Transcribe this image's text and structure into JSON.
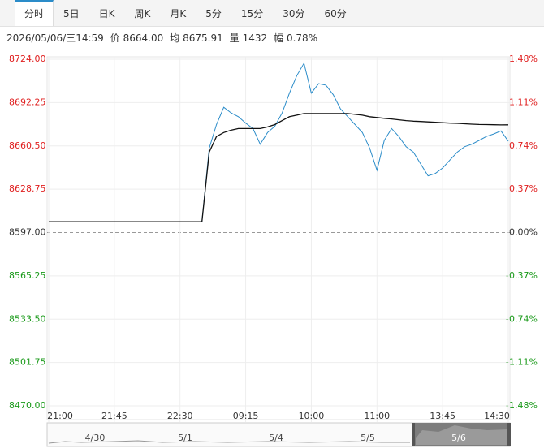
{
  "tabs": [
    "分时",
    "5日",
    "日K",
    "周K",
    "月K",
    "5分",
    "15分",
    "30分",
    "60分"
  ],
  "info": {
    "datetime": "2026/05/06/三14:59",
    "price_label": "价",
    "price": "8664.00",
    "avg_label": "均",
    "avg": "8675.91",
    "vol_label": "量",
    "vol": "1432",
    "range_label": "幅",
    "range": "0.78%"
  },
  "navigator": {
    "dates": [
      "4/30",
      "5/1",
      "5/4",
      "5/5",
      "5/6"
    ]
  },
  "chart_data": {
    "type": "line",
    "x": [
      0,
      1,
      2,
      3,
      4,
      5,
      6,
      7,
      8,
      9,
      10,
      11,
      12,
      13,
      14,
      15,
      16,
      17,
      18,
      19,
      20,
      21,
      22,
      23,
      24,
      25,
      26,
      27,
      28,
      29,
      30,
      31,
      32,
      33,
      34,
      35,
      36,
      37,
      38,
      39,
      40,
      41,
      42,
      43,
      44,
      45,
      46,
      47,
      48,
      49,
      50,
      51,
      52,
      53,
      54,
      55,
      56,
      57,
      58,
      59,
      60,
      61,
      62,
      63
    ],
    "xlim": [
      0,
      63
    ],
    "xticks": [
      {
        "value": 0,
        "label": "21:00"
      },
      {
        "value": 9,
        "label": "21:45"
      },
      {
        "value": 18,
        "label": "22:30"
      },
      {
        "value": 27,
        "label": "09:15"
      },
      {
        "value": 36,
        "label": "10:00"
      },
      {
        "value": 45,
        "label": "11:00"
      },
      {
        "value": 54,
        "label": "13:45"
      },
      {
        "value": 63,
        "label": "14:30"
      }
    ],
    "series": [
      {
        "name": "价",
        "color": "#2b8cc9",
        "values": [
          8605,
          8605,
          8605,
          8605,
          8605,
          8605,
          8605,
          8605,
          8605,
          8605,
          8605,
          8605,
          8605,
          8605,
          8605,
          8605,
          8605,
          8605,
          8605,
          8605,
          8605,
          8605,
          8658.8,
          8676.1,
          8688.8,
          8684.7,
          8681.9,
          8677.2,
          8673.2,
          8661.7,
          8670.3,
          8674.9,
          8684.7,
          8699.2,
          8711.9,
          8721.1,
          8699.2,
          8706.1,
          8705,
          8698,
          8687.6,
          8681.9,
          8676.1,
          8670.3,
          8658.8,
          8642.6,
          8664.5,
          8673.2,
          8667.4,
          8659.9,
          8655.9,
          8647.2,
          8638.6,
          8640.3,
          8644.3,
          8650.1,
          8655.9,
          8659.9,
          8661.7,
          8664.5,
          8667.4,
          8669.2,
          8671.5,
          8664
        ]
      },
      {
        "name": "均",
        "color": "#111111",
        "values": [
          8605,
          8605,
          8605,
          8605,
          8605,
          8605,
          8605,
          8605,
          8605,
          8605,
          8605,
          8605,
          8605,
          8605,
          8605,
          8605,
          8605,
          8605,
          8605,
          8605,
          8605,
          8605,
          8656,
          8667.4,
          8670.3,
          8672,
          8673.2,
          8673.2,
          8673.2,
          8673.2,
          8674.4,
          8676.1,
          8679,
          8681.9,
          8683,
          8684.2,
          8684.2,
          8684.2,
          8684.2,
          8684.2,
          8684.2,
          8684.2,
          8683.6,
          8683,
          8681.9,
          8681.3,
          8680.7,
          8680.2,
          8679.6,
          8679,
          8678.6,
          8678.4,
          8678.1,
          8677.8,
          8677.5,
          8677.2,
          8677,
          8676.7,
          8676.4,
          8676.2,
          8676.1,
          8676,
          8675.9,
          8675.91
        ]
      }
    ],
    "ylim": [
      8470,
      8724
    ],
    "yticks": [
      {
        "value": 8724,
        "label": "8724.00"
      },
      {
        "value": 8692.25,
        "label": "8692.25"
      },
      {
        "value": 8660.5,
        "label": "8660.50"
      },
      {
        "value": 8628.75,
        "label": "8628.75"
      },
      {
        "value": 8597,
        "label": "8597.00"
      },
      {
        "value": 8565.25,
        "label": "8565.25"
      },
      {
        "value": 8533.5,
        "label": "8533.50"
      },
      {
        "value": 8501.75,
        "label": "8501.75"
      },
      {
        "value": 8470,
        "label": "8470.00"
      }
    ],
    "y2lim": [
      -1.48,
      1.48
    ],
    "y2ticks": [
      {
        "value": 1.48,
        "label": "1.48%"
      },
      {
        "value": 1.11,
        "label": "1.11%"
      },
      {
        "value": 0.74,
        "label": "0.74%"
      },
      {
        "value": 0.37,
        "label": "0.37%"
      },
      {
        "value": 0,
        "label": "0.00%"
      },
      {
        "value": -0.37,
        "label": "-0.37%"
      },
      {
        "value": -0.74,
        "label": "-0.74%"
      },
      {
        "value": -1.11,
        "label": "-1.11%"
      },
      {
        "value": -1.48,
        "label": "-1.48%"
      }
    ],
    "up_color": "#e02020",
    "down_color": "#1a9a1a",
    "flat_color": "#333333",
    "grid": true
  }
}
